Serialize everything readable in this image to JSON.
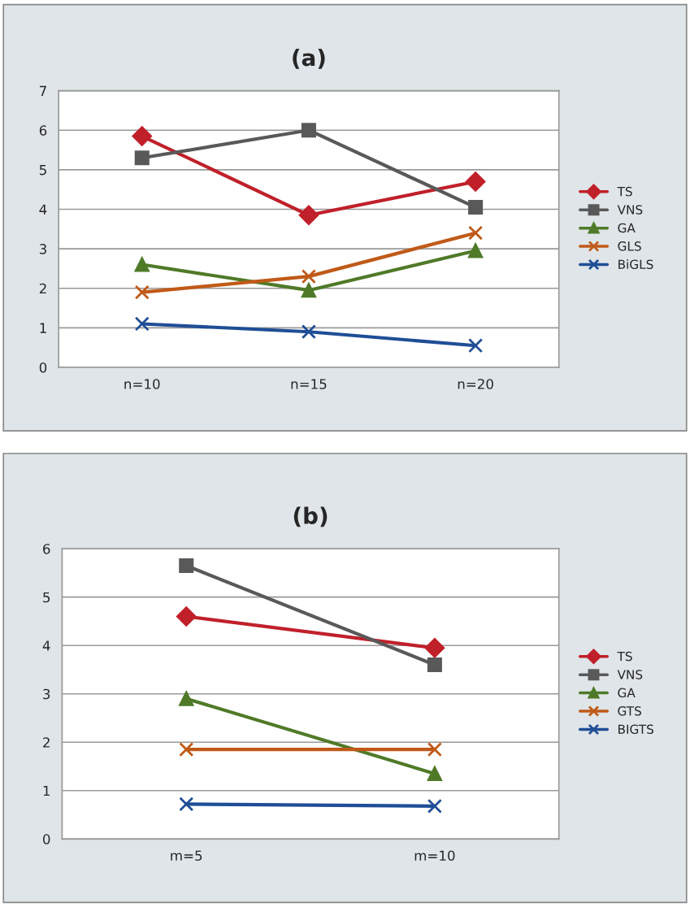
{
  "chart_data": [
    {
      "type": "line",
      "title": "(a)",
      "categories": [
        "n=10",
        "n=15",
        "n=20"
      ],
      "ylim": [
        0,
        7
      ],
      "yticks": [
        0,
        1,
        2,
        3,
        4,
        5,
        6,
        7
      ],
      "grid": "y",
      "legend": "right",
      "series": [
        {
          "name": "TS",
          "color": "#c0202a",
          "marker": "diamond",
          "values": [
            5.85,
            3.85,
            4.7
          ]
        },
        {
          "name": "VNS",
          "color": "#595959",
          "marker": "square",
          "values": [
            5.3,
            6.0,
            4.05
          ]
        },
        {
          "name": "GA",
          "color": "#4f7a28",
          "marker": "triangle",
          "values": [
            2.6,
            1.95,
            2.95
          ]
        },
        {
          "name": "GLS",
          "color": "#c05a18",
          "marker": "cross",
          "values": [
            1.9,
            2.3,
            3.4
          ]
        },
        {
          "name": "BiGLS",
          "color": "#1f4e96",
          "marker": "cross",
          "values": [
            1.1,
            0.9,
            0.55
          ]
        }
      ]
    },
    {
      "type": "line",
      "title": "(b)",
      "categories": [
        "m=5",
        "m=10"
      ],
      "ylim": [
        0,
        6
      ],
      "yticks": [
        0,
        1,
        2,
        3,
        4,
        5,
        6
      ],
      "grid": "y",
      "legend": "right",
      "series": [
        {
          "name": "TS",
          "color": "#c0202a",
          "marker": "diamond",
          "values": [
            4.6,
            3.95
          ]
        },
        {
          "name": "VNS",
          "color": "#595959",
          "marker": "square",
          "values": [
            5.65,
            3.6
          ]
        },
        {
          "name": "GA",
          "color": "#4f7a28",
          "marker": "triangle",
          "values": [
            2.9,
            1.35
          ]
        },
        {
          "name": "GTS",
          "color": "#c05a18",
          "marker": "cross",
          "values": [
            1.85,
            1.85
          ]
        },
        {
          "name": "BIGTS",
          "color": "#1f4e96",
          "marker": "cross",
          "values": [
            0.72,
            0.68
          ]
        }
      ]
    }
  ]
}
